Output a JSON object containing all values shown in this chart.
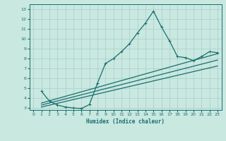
{
  "title": "",
  "xlabel": "Humidex (Indice chaleur)",
  "ylabel": "",
  "xlim": [
    -0.5,
    23.5
  ],
  "ylim": [
    2.8,
    13.5
  ],
  "xticks": [
    0,
    1,
    2,
    3,
    4,
    5,
    6,
    7,
    8,
    9,
    10,
    11,
    12,
    13,
    14,
    15,
    16,
    17,
    18,
    19,
    20,
    21,
    22,
    23
  ],
  "yticks": [
    3,
    4,
    5,
    6,
    7,
    8,
    9,
    10,
    11,
    12,
    13
  ],
  "bg_color": "#c8e8e0",
  "line_color": "#1a6e6e",
  "grid_color": "#aacccc",
  "line1_x": [
    1,
    2,
    3,
    4,
    5,
    6,
    7,
    8,
    9,
    10,
    11,
    12,
    13,
    14,
    15,
    16,
    17,
    18,
    19,
    20,
    21,
    22,
    23
  ],
  "line1_y": [
    4.7,
    3.7,
    3.3,
    3.1,
    3.0,
    2.95,
    3.35,
    5.5,
    7.5,
    8.0,
    8.7,
    9.5,
    10.6,
    11.6,
    12.8,
    11.2,
    9.8,
    8.2,
    8.1,
    7.8,
    8.2,
    8.7,
    8.6
  ],
  "line2_x": [
    1,
    23
  ],
  "line2_y": [
    3.5,
    8.5
  ],
  "line3_x": [
    1,
    23
  ],
  "line3_y": [
    3.3,
    7.85
  ],
  "line4_x": [
    1,
    23
  ],
  "line4_y": [
    3.1,
    7.25
  ]
}
